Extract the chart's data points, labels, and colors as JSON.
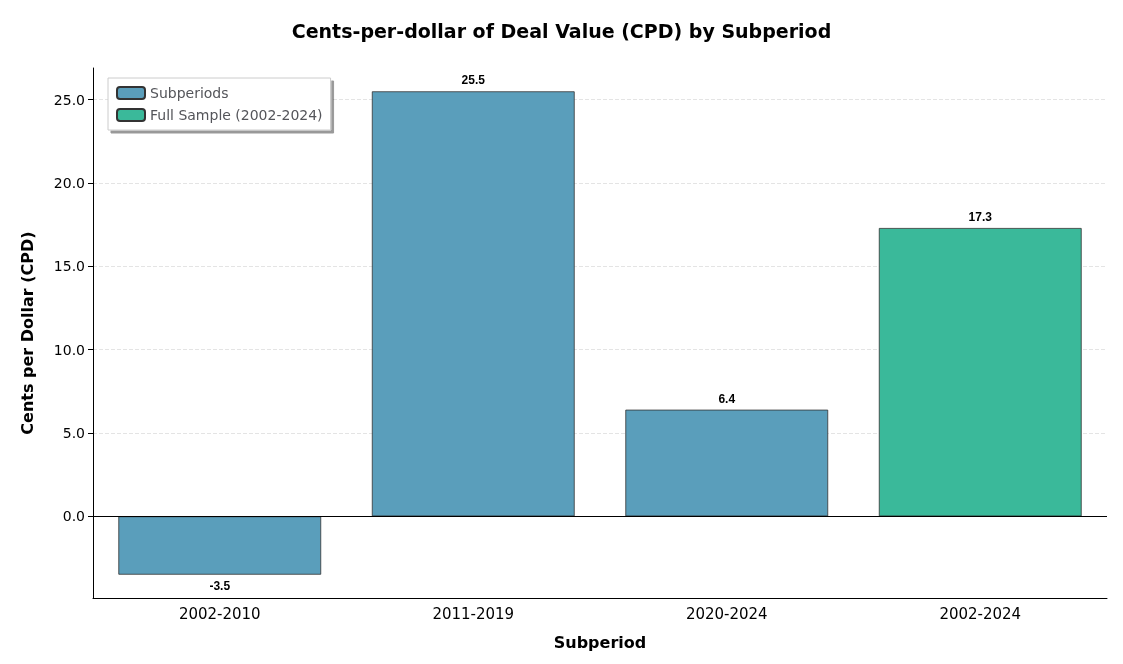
{
  "chart_data": {
    "type": "bar",
    "title": "Cents-per-dollar of Deal Value (CPD) by Subperiod",
    "xlabel": "Subperiod",
    "ylabel": "Cents per Dollar (CPD)",
    "categories": [
      "2002-2010",
      "2011-2019",
      "2020-2024",
      "2002-2024"
    ],
    "series": [
      {
        "name": "Subperiods",
        "color": "#5a9ebb",
        "values": [
          -3.5,
          25.5,
          6.4,
          null
        ]
      },
      {
        "name": "Full Sample (2002-2024)",
        "color": "#3ab99a",
        "values": [
          null,
          null,
          null,
          17.3
        ]
      }
    ],
    "ylim": [
      -4.9,
      26.9
    ],
    "yticks": [
      {
        "value": 0,
        "label": "0.0"
      },
      {
        "value": 5,
        "label": "5.0"
      },
      {
        "value": 10,
        "label": "10.0"
      },
      {
        "value": 15,
        "label": "15.0"
      },
      {
        "value": 20,
        "label": "20.0"
      },
      {
        "value": 25,
        "label": "25.0"
      }
    ],
    "ref_lines": [
      {
        "axis": "y",
        "value": 0,
        "label": null,
        "color": "#000000",
        "line_style": "solid"
      }
    ],
    "data_labels": true,
    "grid": "y",
    "legend": "top left"
  }
}
